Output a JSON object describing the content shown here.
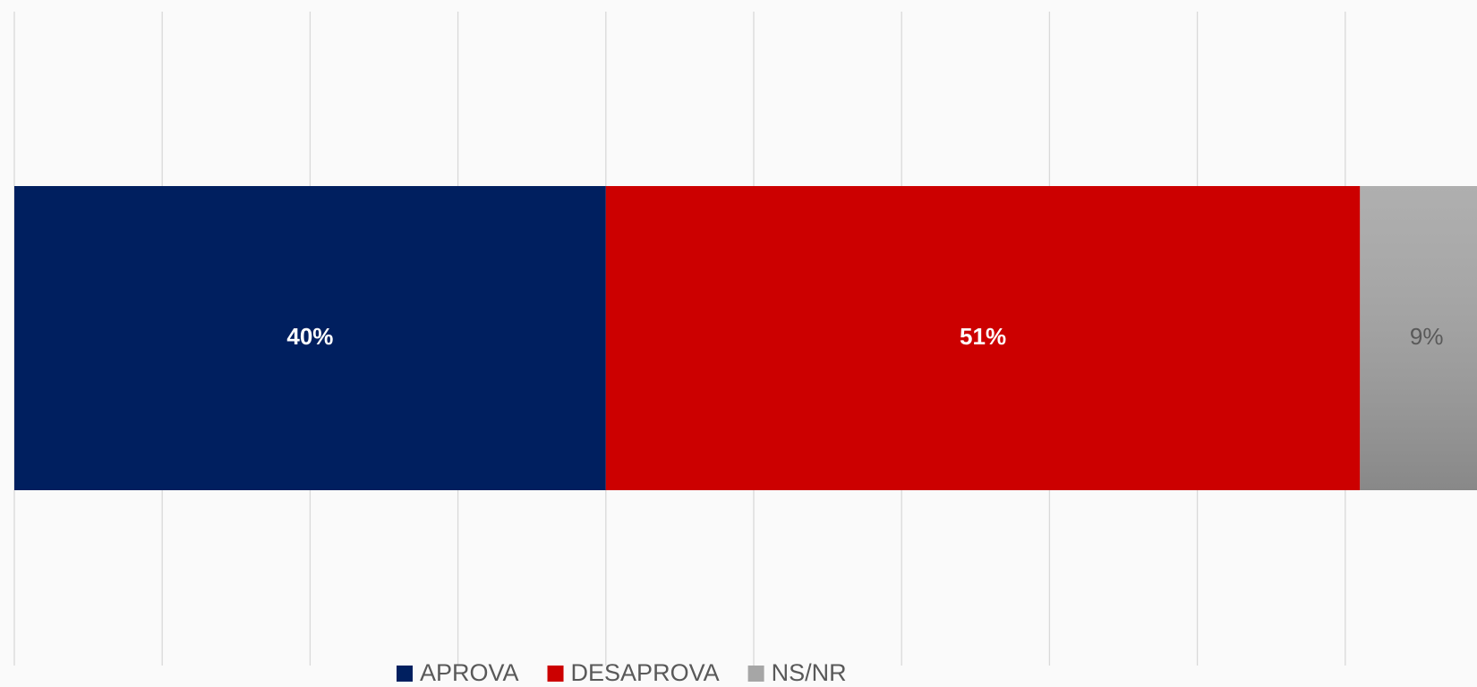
{
  "chart_data": {
    "type": "stacked_bar_horizontal",
    "categories": [
      null
    ],
    "series": [
      {
        "name": "APROVA",
        "color": "#001f5f",
        "values": [
          40
        ],
        "value_labels": [
          "40%"
        ]
      },
      {
        "name": "DESAPROVA",
        "color": "#cc0000",
        "values": [
          51
        ],
        "value_labels": [
          "51%"
        ]
      },
      {
        "name": "NS/NR",
        "color": "#a6a6a6",
        "values": [
          9
        ],
        "value_labels": [
          "9%"
        ]
      }
    ],
    "xlim": [
      0,
      100
    ],
    "xticks": [
      0,
      10,
      20,
      30,
      40,
      50,
      60,
      70,
      80,
      90,
      100
    ],
    "grid": true,
    "legend": "bottom"
  }
}
